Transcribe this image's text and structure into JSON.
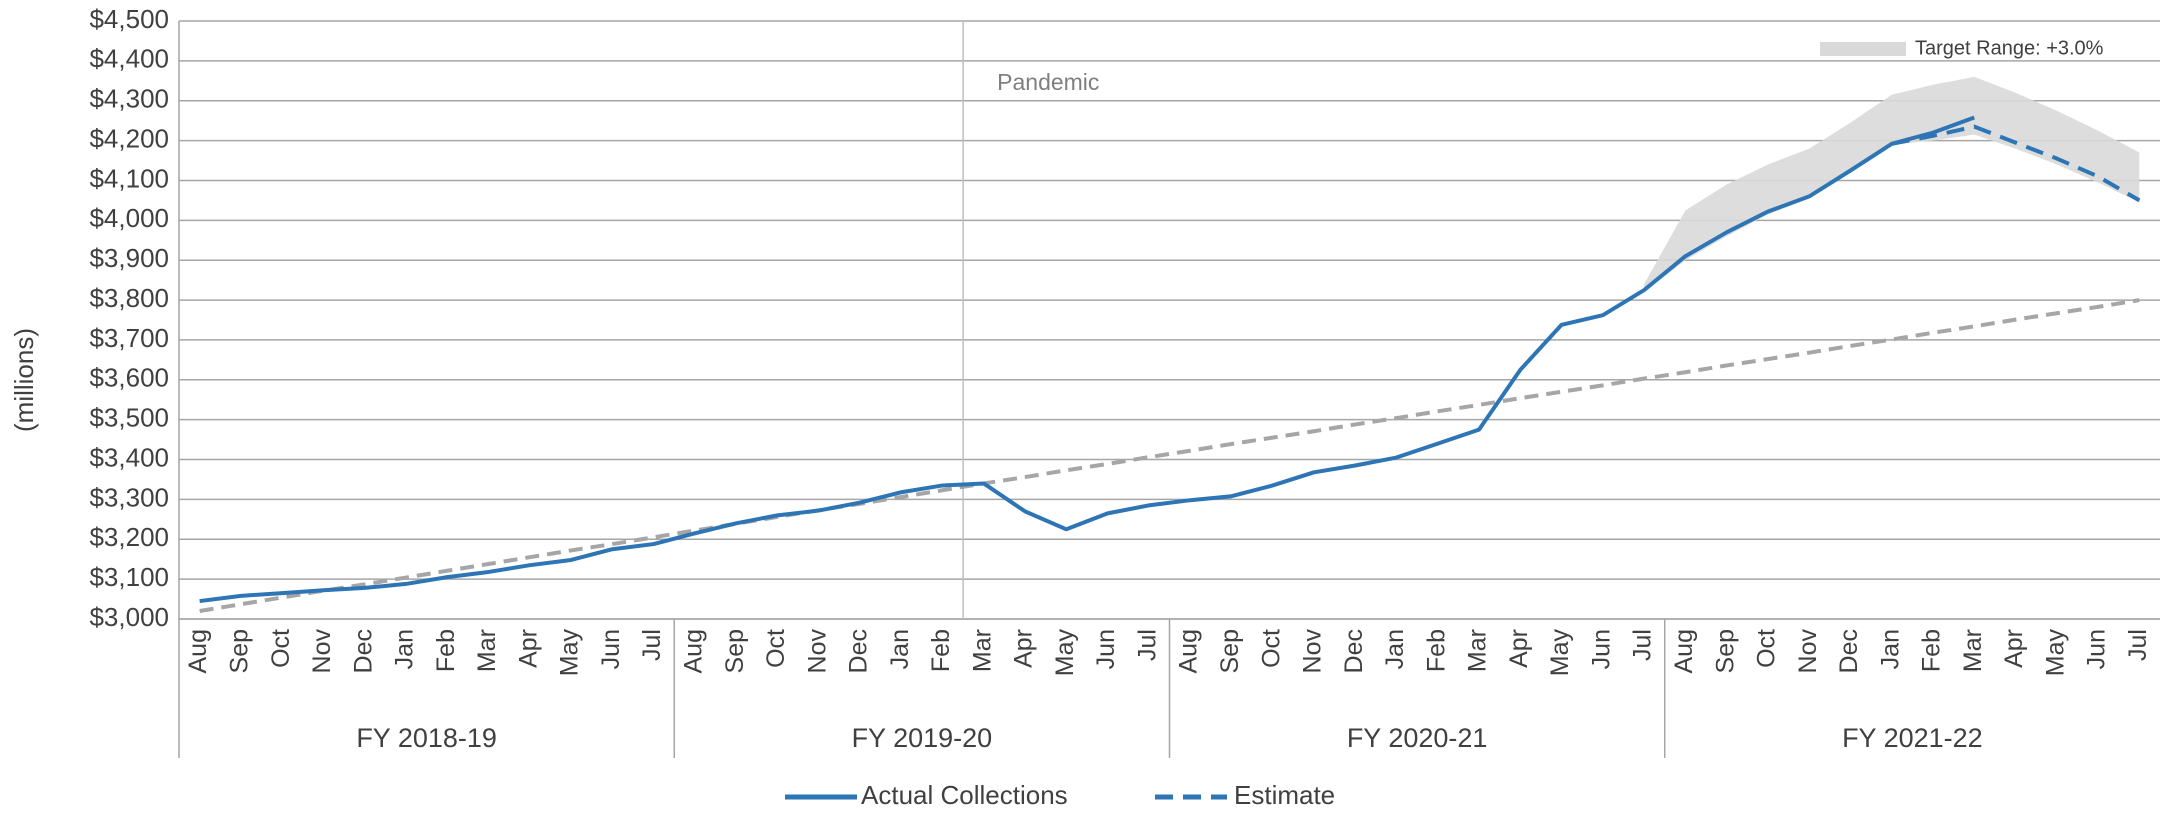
{
  "chart_data": {
    "type": "line",
    "y_label": "(millions)",
    "categories": [
      "Aug",
      "Sep",
      "Oct",
      "Nov",
      "Dec",
      "Jan",
      "Feb",
      "Mar",
      "Apr",
      "May",
      "Jun",
      "Jul",
      "Aug",
      "Sep",
      "Oct",
      "Nov",
      "Dec",
      "Jan",
      "Feb",
      "Mar",
      "Apr",
      "May",
      "Jun",
      "Jul",
      "Aug",
      "Sep",
      "Oct",
      "Nov",
      "Dec",
      "Jan",
      "Feb",
      "Mar",
      "Apr",
      "May",
      "Jun",
      "Jul",
      "Aug",
      "Sep",
      "Oct",
      "Nov",
      "Dec",
      "Jan",
      "Feb",
      "Mar",
      "Apr",
      "May",
      "Jun",
      "Jul"
    ],
    "groups": [
      "FY 2018-19",
      "FY 2019-20",
      "FY 2020-21",
      "FY 2021-22"
    ],
    "series": [
      {
        "name": "Actual Collections",
        "color": "#2e75b6",
        "style": "solid",
        "values": [
          3045,
          3058,
          3065,
          3072,
          3078,
          3088,
          3105,
          3118,
          3135,
          3148,
          3175,
          3188,
          3215,
          3240,
          3260,
          3272,
          3292,
          3318,
          3335,
          3340,
          3270,
          3225,
          3265,
          3285,
          3298,
          3308,
          3335,
          3368,
          3385,
          3405,
          3440,
          3475,
          3625,
          3738,
          3762,
          3825,
          3910,
          3970,
          4022,
          4060,
          4125,
          4192,
          4220,
          4258,
          null,
          null,
          null,
          null
        ]
      },
      {
        "name": "Estimate",
        "color": "#2e75b6",
        "style": "dashed",
        "values": [
          null,
          null,
          null,
          null,
          null,
          null,
          null,
          null,
          null,
          null,
          null,
          null,
          null,
          null,
          null,
          null,
          null,
          null,
          null,
          null,
          null,
          null,
          null,
          null,
          null,
          null,
          null,
          null,
          null,
          null,
          null,
          null,
          null,
          null,
          null,
          null,
          null,
          null,
          null,
          null,
          null,
          4192,
          4212,
          4235,
          4195,
          4155,
          4110,
          4050
        ]
      },
      {
        "color": "#a6a6a6",
        "style": "trend",
        "values": [
          3020,
          3037,
          3054,
          3071,
          3087,
          3104,
          3121,
          3138,
          3155,
          3172,
          3188,
          3205,
          3222,
          3239,
          3256,
          3273,
          3289,
          3306,
          3323,
          3340,
          3356,
          3373,
          3389,
          3406,
          3422,
          3439,
          3455,
          3471,
          3488,
          3504,
          3521,
          3537,
          3554,
          3570,
          3586,
          3603,
          3619,
          3636,
          3652,
          3668,
          3685,
          3701,
          3718,
          3734,
          3751,
          3767,
          3783,
          3800
        ]
      }
    ],
    "band": {
      "name": "Target Range: +3.0%",
      "color": "#d9d9d9",
      "start": 35,
      "upper": [
        3840,
        4025,
        4090,
        4140,
        4180,
        4245,
        4315,
        4340,
        4360,
        4320,
        4275,
        4225,
        4170
      ],
      "lower": [
        3820,
        3900,
        3960,
        4015,
        4055,
        4120,
        4190,
        4200,
        4215,
        4180,
        4140,
        4095,
        4045
      ]
    },
    "annotations": [
      {
        "text": "Pandemic"
      }
    ],
    "ylim": [
      3000,
      4500
    ],
    "yticks": [
      {
        "value": 3000,
        "label": "$3,000"
      },
      {
        "value": 3100,
        "label": "$3,100"
      },
      {
        "value": 3200,
        "label": "$3,200"
      },
      {
        "value": 3300,
        "label": "$3,300"
      },
      {
        "value": 3400,
        "label": "$3,400"
      },
      {
        "value": 3500,
        "label": "$3,500"
      },
      {
        "value": 3600,
        "label": "$3,600"
      },
      {
        "value": 3700,
        "label": "$3,700"
      },
      {
        "value": 3800,
        "label": "$3,800"
      },
      {
        "value": 3900,
        "label": "$3,900"
      },
      {
        "value": 4000,
        "label": "$4,000"
      },
      {
        "value": 4100,
        "label": "$4,100"
      },
      {
        "value": 4200,
        "label": "$4,200"
      },
      {
        "value": 4300,
        "label": "$4,300"
      },
      {
        "value": 4400,
        "label": "$4,400"
      },
      {
        "value": 4500,
        "label": "$4,500"
      }
    ],
    "grid": true
  }
}
